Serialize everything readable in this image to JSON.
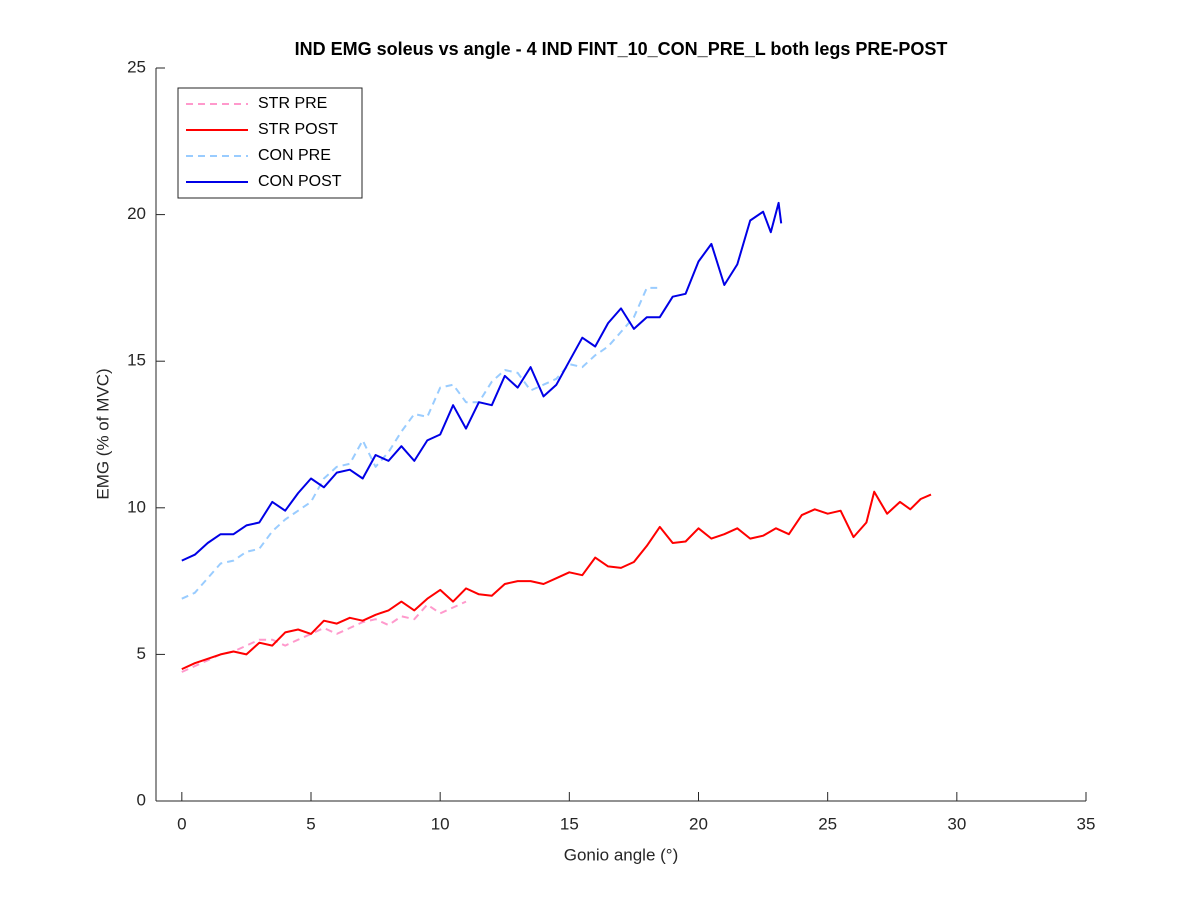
{
  "chart_data": {
    "type": "line",
    "title": "IND EMG soleus vs angle - 4 IND FINT_10_CON_PRE_L both legs PRE-POST",
    "x_label": "Gonio angle (°)",
    "y_label": "EMG (% of MVC)",
    "xlim": [
      -1,
      35
    ],
    "ylim": [
      0,
      25
    ],
    "xticks": [
      0,
      5,
      10,
      15,
      20,
      25,
      30,
      35
    ],
    "yticks": [
      0,
      5,
      10,
      15,
      20,
      25
    ],
    "legend_position": "upper-left",
    "series": [
      {
        "name": "STR PRE",
        "color": "#ff99cc",
        "dashed": true,
        "x": [
          0,
          0.5,
          1,
          1.5,
          2,
          2.5,
          3,
          3.5,
          4,
          4.5,
          5,
          5.5,
          6,
          6.5,
          7,
          7.5,
          8,
          8.5,
          9,
          9.5,
          10,
          10.5,
          11
        ],
        "values": [
          4.4,
          4.6,
          4.8,
          5.0,
          5.1,
          5.3,
          5.5,
          5.5,
          5.3,
          5.5,
          5.7,
          5.9,
          5.7,
          5.9,
          6.1,
          6.2,
          6.0,
          6.3,
          6.2,
          6.7,
          6.4,
          6.6,
          6.8
        ]
      },
      {
        "name": "STR POST",
        "color": "#ff0000",
        "dashed": false,
        "x": [
          0,
          0.5,
          1,
          1.5,
          2,
          2.5,
          3,
          3.5,
          4,
          4.5,
          5,
          5.5,
          6,
          6.5,
          7,
          7.5,
          8,
          8.5,
          9,
          9.5,
          10,
          10.5,
          11,
          11.5,
          12,
          12.5,
          13,
          13.5,
          14,
          14.5,
          15,
          15.5,
          16,
          16.5,
          17,
          17.5,
          18,
          18.5,
          19,
          19.5,
          20,
          20.5,
          21,
          21.5,
          22,
          22.5,
          23,
          23.5,
          24,
          24.5,
          25,
          25.5,
          26,
          26.5,
          26.8,
          27.3,
          27.8,
          28.2,
          28.6,
          29
        ],
        "values": [
          4.5,
          4.7,
          4.85,
          5.0,
          5.1,
          5.0,
          5.4,
          5.3,
          5.75,
          5.85,
          5.7,
          6.15,
          6.05,
          6.25,
          6.15,
          6.35,
          6.5,
          6.8,
          6.5,
          6.9,
          7.2,
          6.8,
          7.25,
          7.05,
          7.0,
          7.4,
          7.5,
          7.5,
          7.4,
          7.6,
          7.8,
          7.7,
          8.3,
          8.0,
          7.95,
          8.15,
          8.7,
          9.35,
          8.8,
          8.85,
          9.3,
          8.95,
          9.1,
          9.3,
          8.95,
          9.05,
          9.3,
          9.1,
          9.75,
          9.95,
          9.8,
          9.9,
          9.0,
          9.5,
          10.55,
          9.8,
          10.2,
          9.95,
          10.3,
          10.45
        ]
      },
      {
        "name": "CON PRE",
        "color": "#99ccff",
        "dashed": true,
        "x": [
          0,
          0.5,
          1,
          1.5,
          2,
          2.5,
          3,
          3.5,
          4,
          4.5,
          5,
          5.5,
          6,
          6.5,
          7,
          7.5,
          8,
          8.5,
          9,
          9.5,
          10,
          10.5,
          11,
          11.5,
          12,
          12.5,
          13,
          13.5,
          14,
          14.5,
          15,
          15.5,
          16,
          16.5,
          17,
          17.5,
          18,
          18.4
        ],
        "values": [
          6.9,
          7.1,
          7.6,
          8.1,
          8.2,
          8.5,
          8.6,
          9.2,
          9.6,
          9.9,
          10.2,
          11.0,
          11.4,
          11.5,
          12.3,
          11.4,
          11.9,
          12.6,
          13.2,
          13.1,
          14.1,
          14.2,
          13.6,
          13.6,
          14.3,
          14.7,
          14.6,
          14.0,
          14.2,
          14.4,
          14.9,
          14.8,
          15.2,
          15.5,
          16.0,
          16.5,
          17.5,
          17.5
        ]
      },
      {
        "name": "CON POST",
        "color": "#0000e6",
        "dashed": false,
        "x": [
          0,
          0.5,
          1,
          1.5,
          2,
          2.5,
          3,
          3.5,
          4,
          4.5,
          5,
          5.5,
          6,
          6.5,
          7,
          7.5,
          8,
          8.5,
          9,
          9.5,
          10,
          10.5,
          11,
          11.5,
          12,
          12.5,
          13,
          13.5,
          14,
          14.5,
          15,
          15.5,
          16,
          16.5,
          17,
          17.5,
          18,
          18.5,
          19,
          19.5,
          20,
          20.5,
          21,
          21.5,
          22,
          22.5,
          22.8,
          23.1,
          23.2
        ],
        "values": [
          8.2,
          8.4,
          8.8,
          9.1,
          9.1,
          9.4,
          9.5,
          10.2,
          9.9,
          10.5,
          11.0,
          10.7,
          11.2,
          11.3,
          11.0,
          11.8,
          11.6,
          12.1,
          11.6,
          12.3,
          12.5,
          13.5,
          12.7,
          13.6,
          13.5,
          14.5,
          14.1,
          14.8,
          13.8,
          14.2,
          15.0,
          15.8,
          15.5,
          16.3,
          16.8,
          16.1,
          16.5,
          16.5,
          17.2,
          17.3,
          18.4,
          19.0,
          17.6,
          18.3,
          19.8,
          20.1,
          19.4,
          20.4,
          19.7
        ]
      }
    ]
  }
}
